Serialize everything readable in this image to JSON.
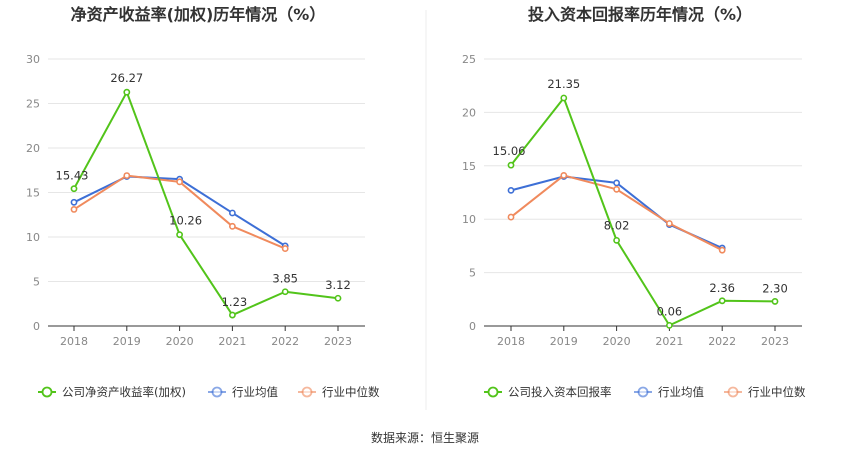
{
  "source_text": "数据来源：恒生聚源",
  "chart_data": [
    {
      "type": "line",
      "title": "净资产收益率(加权)历年情况（%）",
      "categories": [
        "2018",
        "2019",
        "2020",
        "2021",
        "2022",
        "2023"
      ],
      "ylim": [
        0,
        30
      ],
      "yticks": [
        0,
        5,
        10,
        15,
        20,
        25,
        30
      ],
      "grid": true,
      "legend_position": "bottom",
      "series": [
        {
          "name": "公司净资产收益率(加权)",
          "color": "#52c41a",
          "values": [
            15.43,
            26.27,
            10.26,
            1.23,
            3.85,
            3.12
          ],
          "labels": [
            "15.43",
            "26.27",
            "10.26",
            "1.23",
            "3.85",
            "3.12"
          ],
          "show_labels": true
        },
        {
          "name": "行业均值",
          "color": "#3d6fd6",
          "values": [
            13.9,
            16.8,
            16.5,
            12.7,
            9.0,
            null
          ],
          "show_labels": false
        },
        {
          "name": "行业中位数",
          "color": "#f08a5d",
          "values": [
            13.1,
            16.9,
            16.2,
            11.2,
            8.7,
            null
          ],
          "show_labels": false
        }
      ]
    },
    {
      "type": "line",
      "title": "投入资本回报率历年情况（%）",
      "categories": [
        "2018",
        "2019",
        "2020",
        "2021",
        "2022",
        "2023"
      ],
      "ylim": [
        0,
        25
      ],
      "yticks": [
        0,
        5,
        10,
        15,
        20,
        25
      ],
      "grid": true,
      "legend_position": "bottom",
      "series": [
        {
          "name": "公司投入资本回报率",
          "color": "#52c41a",
          "values": [
            15.06,
            21.35,
            8.02,
            0.06,
            2.36,
            2.3
          ],
          "labels": [
            "15.06",
            "21.35",
            "8.02",
            "0.06",
            "2.36",
            "2.30"
          ],
          "show_labels": true
        },
        {
          "name": "行业均值",
          "color": "#3d6fd6",
          "values": [
            12.7,
            14.0,
            13.4,
            9.5,
            7.3,
            null
          ],
          "show_labels": false
        },
        {
          "name": "行业中位数",
          "color": "#f08a5d",
          "values": [
            10.2,
            14.1,
            12.8,
            9.6,
            7.1,
            null
          ],
          "show_labels": false
        }
      ]
    }
  ]
}
